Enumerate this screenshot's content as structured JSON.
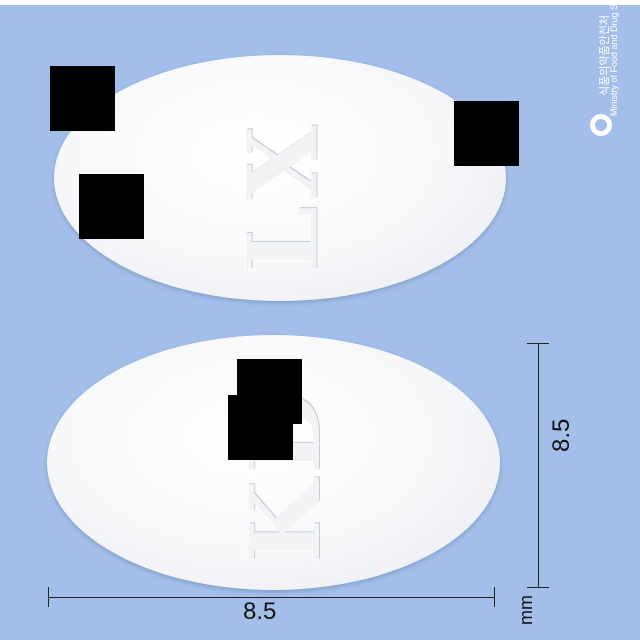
{
  "photo": {
    "background_color": "#a3bfe9",
    "pill_color": "#ffffff"
  },
  "pills": [
    {
      "imprint": "LX"
    },
    {
      "imprint": "KD"
    }
  ],
  "watermark": {
    "korean": "식품의약품안전처",
    "english": "Ministry of Food and Drug Safety"
  },
  "scale": {
    "horizontal_label": "8.5",
    "vertical_label": "8.5",
    "unit": "mm"
  }
}
